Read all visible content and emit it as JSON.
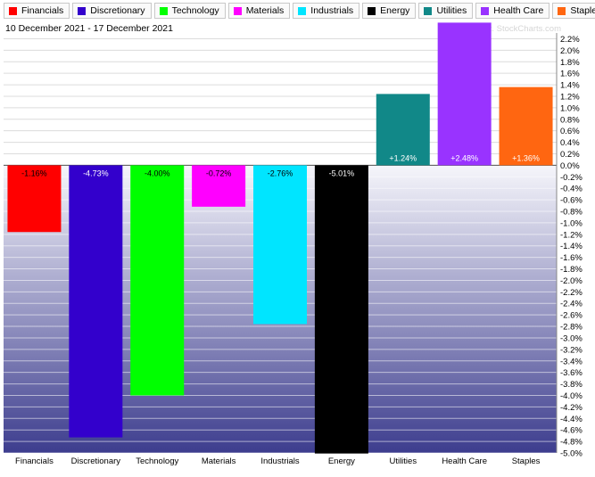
{
  "header": {
    "date_range": "10 December 2021 - 17 December 2021",
    "copyright": "Copyright. StockCharts.com"
  },
  "legend": [
    {
      "label": "Financials",
      "color": "#ff0000"
    },
    {
      "label": "Discretionary",
      "color": "#3300cc"
    },
    {
      "label": "Technology",
      "color": "#00ff00"
    },
    {
      "label": "Materials",
      "color": "#ff00ff"
    },
    {
      "label": "Industrials",
      "color": "#00e5ff"
    },
    {
      "label": "Energy",
      "color": "#000000"
    },
    {
      "label": "Utilities",
      "color": "#118888"
    },
    {
      "label": "Health Care",
      "color": "#9933ff"
    },
    {
      "label": "Staples",
      "color": "#ff6611"
    }
  ],
  "chart_data": {
    "type": "bar",
    "categories": [
      "Financials",
      "Discretionary",
      "Technology",
      "Materials",
      "Industrials",
      "Energy",
      "Utilities",
      "Health Care",
      "Staples"
    ],
    "values": [
      -1.16,
      -4.73,
      -4.0,
      -0.72,
      -2.76,
      -5.01,
      1.24,
      2.48,
      1.36
    ],
    "data_labels": [
      "-1.16%",
      "-4.73%",
      "-4.00%",
      "-0.72%",
      "-2.76%",
      "-5.01%",
      "+1.24%",
      "+2.48%",
      "+1.36%"
    ],
    "colors": [
      "#ff0000",
      "#3300cc",
      "#00ff00",
      "#ff00ff",
      "#00e5ff",
      "#000000",
      "#118888",
      "#9933ff",
      "#ff6611"
    ],
    "label_colors": [
      "#000000",
      "#ffffff",
      "#000000",
      "#000000",
      "#000000",
      "#ffffff",
      "#ffffff",
      "#ffffff",
      "#ffffff"
    ],
    "ylim": [
      -5.0,
      2.3
    ],
    "ytick_values": [
      2.2,
      2.0,
      1.8,
      1.6,
      1.4,
      1.2,
      1.0,
      0.8,
      0.6,
      0.4,
      0.2,
      0.0,
      -0.2,
      -0.4,
      -0.6,
      -0.8,
      -1.0,
      -1.2,
      -1.4,
      -1.6,
      -1.8,
      -2.0,
      -2.2,
      -2.4,
      -2.6,
      -2.8,
      -3.0,
      -3.2,
      -3.4,
      -3.6,
      -3.8,
      -4.0,
      -4.2,
      -4.4,
      -4.6,
      -4.8,
      -5.0
    ],
    "ytick_labels": [
      "2.2%",
      "2.0%",
      "1.8%",
      "1.6%",
      "1.4%",
      "1.2%",
      "1.0%",
      "0.8%",
      "0.6%",
      "0.4%",
      "0.2%",
      "0.0%",
      "-0.2%",
      "-0.4%",
      "-0.6%",
      "-0.8%",
      "-1.0%",
      "-1.2%",
      "-1.4%",
      "-1.6%",
      "-1.8%",
      "-2.0%",
      "-2.2%",
      "-2.4%",
      "-2.6%",
      "-2.8%",
      "-3.0%",
      "-3.2%",
      "-3.4%",
      "-3.6%",
      "-3.8%",
      "-4.0%",
      "-4.2%",
      "-4.4%",
      "-4.6%",
      "-4.8%",
      "-5.0%"
    ],
    "grid": true,
    "legend_position": "top"
  }
}
